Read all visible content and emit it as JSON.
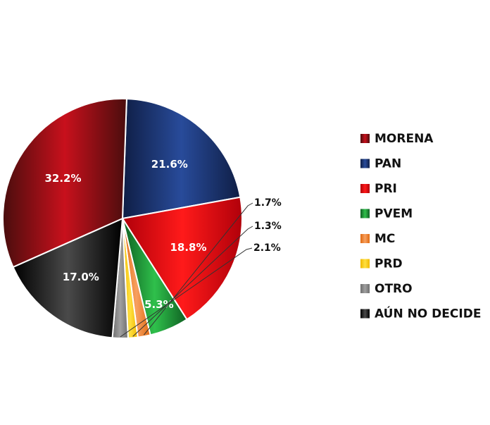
{
  "chart_data": {
    "type": "pie",
    "title": "",
    "legend_position": "right",
    "slices": [
      {
        "label": "PAN",
        "value": 21.6,
        "display": "21.6%",
        "color": "#1f3a78",
        "color_dark": "#0f1e45",
        "color_light": "#284b9a"
      },
      {
        "label": "PRI",
        "value": 18.8,
        "display": "18.8%",
        "color": "#e30613",
        "color_dark": "#b0000a",
        "color_light": "#ff1a1a"
      },
      {
        "label": "PVEM",
        "value": 5.3,
        "display": "5.3%",
        "color": "#1f9a3a",
        "color_dark": "#0f5f22",
        "color_light": "#2fc04b"
      },
      {
        "label": "MC",
        "value": 1.7,
        "display": "1.7%",
        "color": "#f28a3c",
        "color_dark": "#e06a10",
        "color_light": "#f7a060"
      },
      {
        "label": "PRD",
        "value": 1.3,
        "display": "1.3%",
        "color": "#ffd200",
        "color_dark": "#f0b800",
        "color_light": "#ffe040"
      },
      {
        "label": "OTRO",
        "value": 2.1,
        "display": "2.1%",
        "color": "#8a8a8a",
        "color_dark": "#6e6e6e",
        "color_light": "#a0a0a0"
      },
      {
        "label": "AÚN NO DECIDE",
        "value": 17.0,
        "display": "17.0%",
        "color": "#111111",
        "color_dark": "#000000",
        "color_light": "#4a4a4a"
      },
      {
        "label": "MORENA",
        "value": 32.2,
        "display": "32.2%",
        "color": "#a0101a",
        "color_dark": "#4a0d0d",
        "color_light": "#c8101c"
      }
    ],
    "legend_order": [
      "MORENA",
      "PAN",
      "PRI",
      "PVEM",
      "MC",
      "PRD",
      "OTRO",
      "AÚN NO DECIDE"
    ]
  }
}
